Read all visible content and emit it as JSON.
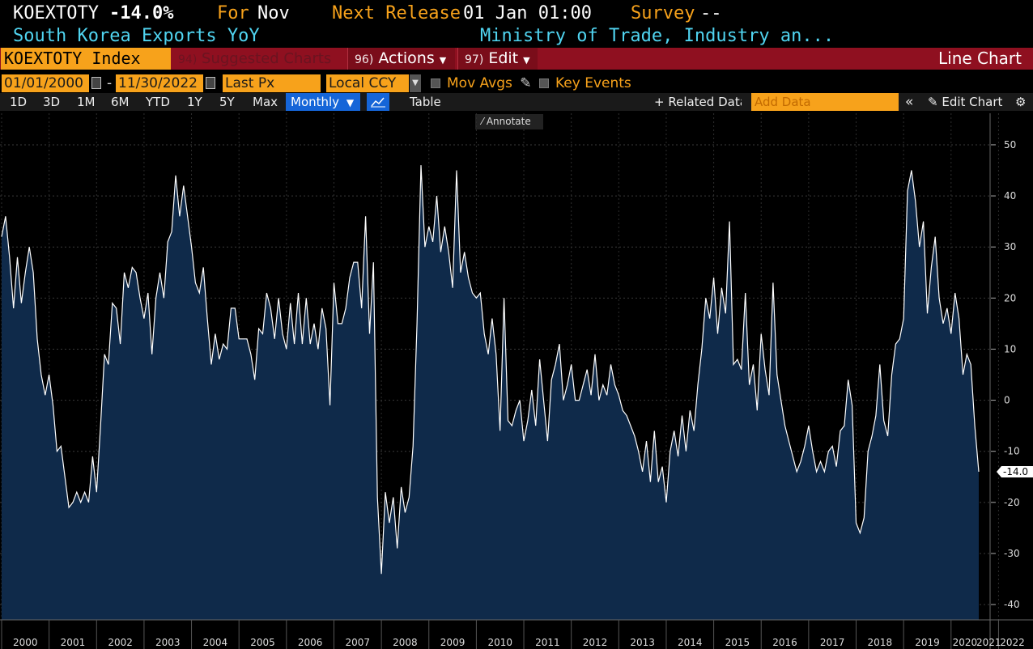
{
  "header": {
    "ticker": "KOEXTOTY",
    "last_value": "-14.0%",
    "for_label": "For",
    "for_value": "Nov",
    "next_release_label": "Next Release",
    "next_release_value": "01 Jan 01:00",
    "survey_label": "Survey",
    "survey_value": "--",
    "description": "South Korea Exports YoY",
    "source": "Ministry of Trade, Industry an..."
  },
  "command_bar": {
    "security": "KOEXTOTY Index",
    "suggested_num": "94)",
    "suggested_label": "Suggested Charts",
    "actions_num": "96)",
    "actions_label": "Actions",
    "edit_num": "97)",
    "edit_label": "Edit",
    "chart_type": "Line Chart"
  },
  "controls": {
    "start_date": "01/01/2000",
    "date_sep": "-",
    "end_date": "11/30/2022",
    "field": "Last Px",
    "currency": "Local CCY",
    "mov_avgs": "Mov Avgs",
    "key_events": "Key Events"
  },
  "toolbar": {
    "ranges": [
      "1D",
      "3D",
      "1M",
      "6M",
      "YTD",
      "1Y",
      "5Y",
      "Max"
    ],
    "period": "Monthly",
    "table": "Table",
    "related": "Related Data",
    "add_data_placeholder": "Add Data",
    "collapse": "«",
    "edit_chart": "Edit Chart",
    "annotate": "Annotate"
  },
  "colors": {
    "accent": "#f7a21b",
    "cyan": "#50d4f0",
    "bar_red": "#8f1020",
    "area_fill": "#0f2a4a",
    "line": "#ffffff",
    "button_blue": "#1565d8"
  },
  "chart_data": {
    "type": "area",
    "title": "",
    "xlabel": "",
    "ylabel": "",
    "x_start": "2000-01",
    "x_end": "2022-11",
    "frequency": "monthly",
    "ylim": [
      -43,
      53
    ],
    "yticks": [
      -40,
      -30,
      -20,
      -10,
      0,
      10,
      20,
      30,
      40,
      50
    ],
    "xticks": [
      "2000",
      "2001",
      "2002",
      "2003",
      "2004",
      "2005",
      "2006",
      "2007",
      "2008",
      "2009",
      "2010",
      "2011",
      "2012",
      "2013",
      "2014",
      "2015",
      "2016",
      "2017",
      "2018",
      "2019",
      "2020",
      "2021",
      "2022"
    ],
    "grid": true,
    "last_value_label": "-14.0",
    "series": [
      {
        "values": [
          32.0,
          36.0,
          28.0,
          18.0,
          28.0,
          19.0,
          25.0,
          30.0,
          25.0,
          12.0,
          5.0,
          1.0,
          5.0,
          -1.0,
          -10.0,
          -9.0,
          -15.0,
          -21.0,
          -20.0,
          -18.0,
          -20.0,
          -18.0,
          -20.0,
          -11.0,
          -18.0,
          -5.0,
          9.0,
          7.0,
          19.0,
          18.0,
          11.0,
          25.0,
          22.0,
          26.0,
          25.0,
          20.0,
          16.0,
          21.0,
          9.0,
          20.0,
          25.0,
          20.0,
          31.0,
          33.0,
          44.0,
          36.0,
          42.0,
          36.0,
          30.0,
          23.0,
          21.0,
          26.0,
          16.0,
          7.0,
          13.0,
          8.0,
          11.0,
          10.0,
          18.0,
          18.0,
          12.0,
          12.0,
          12.0,
          9.0,
          4.0,
          14.0,
          13.0,
          21.0,
          18.0,
          12.0,
          20.0,
          13.0,
          10.0,
          19.0,
          11.0,
          21.0,
          11.0,
          20.0,
          11.0,
          15.0,
          10.0,
          18.0,
          14.0,
          -1.0,
          23.0,
          15.0,
          15.0,
          18.0,
          24.0,
          27.0,
          27.0,
          18.0,
          36.0,
          13.0,
          27.0,
          -19.0,
          -34.0,
          -18.0,
          -24.0,
          -19.0,
          -29.0,
          -17.0,
          -22.0,
          -19.0,
          -9.0,
          15.0,
          46.0,
          30.0,
          34.0,
          31.0,
          40.0,
          29.0,
          34.0,
          29.0,
          22.0,
          45.0,
          25.0,
          29.0,
          24.0,
          21.0,
          20.0,
          21.0,
          13.0,
          9.0,
          16.0,
          9.0,
          -6.0,
          20.0,
          -4.0,
          -5.0,
          -2.0,
          0.0,
          -8.0,
          -4.0,
          2.0,
          -5.0,
          8.0,
          0.0,
          -8.0,
          4.0,
          7.0,
          11.0,
          0.0,
          3.0,
          7.0,
          0.0,
          0.0,
          3.0,
          6.0,
          1.0,
          9.0,
          0.0,
          3.0,
          1.0,
          7.0,
          3.0,
          1.0,
          -2.0,
          -3.0,
          -5.0,
          -7.0,
          -10.0,
          -14.0,
          -8.0,
          -16.0,
          -6.0,
          -16.0,
          -13.0,
          -20.0,
          -10.0,
          -6.0,
          -11.0,
          -3.0,
          -10.0,
          -2.0,
          -6.0,
          3.0,
          10.0,
          20.0,
          16.0,
          24.0,
          13.0,
          22.0,
          17.0,
          35.0,
          7.0,
          8.0,
          6.0,
          21.0,
          3.0,
          7.0,
          -2.0,
          13.0,
          6.0,
          1.0,
          23.0,
          5.0,
          0.0,
          -5.0,
          -8.0,
          -11.0,
          -14.0,
          -12.0,
          -9.0,
          -5.0,
          -10.0,
          -14.0,
          -12.0,
          -14.0,
          -10.0,
          -9.0,
          -13.0,
          -6.0,
          -5.0,
          4.0,
          -1.0,
          -24.0,
          -26.0,
          -23.0,
          -10.0,
          -7.0,
          -3.0,
          7.0,
          -4.0,
          -7.0,
          5.0,
          11.0,
          12.0,
          16.0,
          41.0,
          45.0,
          39.0,
          30.0,
          35.0,
          17.0,
          26.0,
          32.0,
          20.0,
          15.0,
          18.0,
          13.0,
          21.0,
          16.0,
          5.0,
          9.0,
          7.0,
          -5.0,
          -14.0
        ]
      }
    ]
  }
}
